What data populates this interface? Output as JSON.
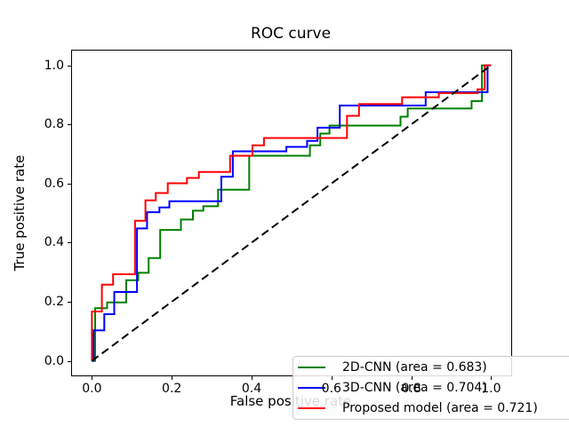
{
  "chart_data": {
    "type": "line",
    "title": "ROC curve",
    "xlabel": "False positive rate",
    "ylabel": "True positive rate",
    "xlim": [
      -0.05,
      1.05
    ],
    "ylim": [
      -0.05,
      1.05
    ],
    "grid": false,
    "legend_position": "lower right",
    "x_ticks": {
      "values": [
        0.0,
        0.2,
        0.4,
        0.6,
        0.8,
        1.0
      ],
      "labels": [
        "0.0",
        "0.2",
        "0.4",
        "0.6",
        "0.8",
        "1.0"
      ]
    },
    "y_ticks": {
      "values": [
        0.0,
        0.2,
        0.4,
        0.6,
        0.8,
        1.0
      ],
      "labels": [
        "0.0",
        "0.2",
        "0.4",
        "0.6",
        "0.8",
        "1.0"
      ]
    },
    "diagonal": {
      "name": "chance-line",
      "color": "#000000",
      "style": "dashed",
      "points": [
        [
          0,
          0
        ],
        [
          1,
          1
        ]
      ]
    },
    "series": [
      {
        "name": "2D-CNN",
        "label": "2D-CNN (area = 0.683)",
        "area": 0.683,
        "color": "#008000",
        "points": [
          [
            0,
            0
          ],
          [
            0.008,
            0
          ],
          [
            0.008,
            0.178
          ],
          [
            0.038,
            0.178
          ],
          [
            0.038,
            0.198
          ],
          [
            0.086,
            0.198
          ],
          [
            0.086,
            0.273
          ],
          [
            0.116,
            0.273
          ],
          [
            0.116,
            0.298
          ],
          [
            0.142,
            0.298
          ],
          [
            0.142,
            0.348
          ],
          [
            0.171,
            0.348
          ],
          [
            0.171,
            0.443
          ],
          [
            0.223,
            0.443
          ],
          [
            0.223,
            0.478
          ],
          [
            0.253,
            0.478
          ],
          [
            0.253,
            0.508
          ],
          [
            0.279,
            0.508
          ],
          [
            0.279,
            0.523
          ],
          [
            0.316,
            0.523
          ],
          [
            0.316,
            0.579
          ],
          [
            0.394,
            0.579
          ],
          [
            0.394,
            0.694
          ],
          [
            0.546,
            0.694
          ],
          [
            0.546,
            0.729
          ],
          [
            0.572,
            0.729
          ],
          [
            0.572,
            0.769
          ],
          [
            0.595,
            0.769
          ],
          [
            0.595,
            0.796
          ],
          [
            0.773,
            0.796
          ],
          [
            0.773,
            0.826
          ],
          [
            0.791,
            0.826
          ],
          [
            0.791,
            0.854
          ],
          [
            0.951,
            0.854
          ],
          [
            0.951,
            0.879
          ],
          [
            0.977,
            0.879
          ],
          [
            0.977,
            1.0
          ],
          [
            1,
            1
          ]
        ]
      },
      {
        "name": "3D-CNN",
        "label": "3D-CNN (area = 0.704)",
        "area": 0.704,
        "color": "#0000ff",
        "points": [
          [
            0,
            0
          ],
          [
            0.004,
            0
          ],
          [
            0.004,
            0.103
          ],
          [
            0.031,
            0.103
          ],
          [
            0.031,
            0.158
          ],
          [
            0.056,
            0.158
          ],
          [
            0.056,
            0.233
          ],
          [
            0.113,
            0.233
          ],
          [
            0.113,
            0.448
          ],
          [
            0.138,
            0.448
          ],
          [
            0.138,
            0.503
          ],
          [
            0.169,
            0.503
          ],
          [
            0.169,
            0.519
          ],
          [
            0.194,
            0.519
          ],
          [
            0.194,
            0.54
          ],
          [
            0.324,
            0.54
          ],
          [
            0.324,
            0.623
          ],
          [
            0.353,
            0.623
          ],
          [
            0.353,
            0.709
          ],
          [
            0.487,
            0.709
          ],
          [
            0.487,
            0.724
          ],
          [
            0.539,
            0.724
          ],
          [
            0.539,
            0.744
          ],
          [
            0.565,
            0.744
          ],
          [
            0.565,
            0.789
          ],
          [
            0.621,
            0.789
          ],
          [
            0.621,
            0.864
          ],
          [
            0.836,
            0.864
          ],
          [
            0.836,
            0.909
          ],
          [
            0.991,
            0.909
          ],
          [
            0.991,
            1.0
          ],
          [
            1,
            1
          ]
        ]
      },
      {
        "name": "Proposed model",
        "label": "Proposed model (area = 0.721)",
        "area": 0.721,
        "color": "#ff0000",
        "points": [
          [
            0,
            0
          ],
          [
            0,
            0.167
          ],
          [
            0.025,
            0.167
          ],
          [
            0.025,
            0.258
          ],
          [
            0.053,
            0.258
          ],
          [
            0.053,
            0.293
          ],
          [
            0.108,
            0.293
          ],
          [
            0.108,
            0.474
          ],
          [
            0.134,
            0.474
          ],
          [
            0.134,
            0.543
          ],
          [
            0.16,
            0.543
          ],
          [
            0.16,
            0.568
          ],
          [
            0.19,
            0.568
          ],
          [
            0.19,
            0.601
          ],
          [
            0.238,
            0.601
          ],
          [
            0.238,
            0.619
          ],
          [
            0.268,
            0.619
          ],
          [
            0.268,
            0.639
          ],
          [
            0.346,
            0.639
          ],
          [
            0.346,
            0.694
          ],
          [
            0.402,
            0.694
          ],
          [
            0.402,
            0.729
          ],
          [
            0.431,
            0.729
          ],
          [
            0.431,
            0.754
          ],
          [
            0.639,
            0.754
          ],
          [
            0.639,
            0.829
          ],
          [
            0.669,
            0.829
          ],
          [
            0.669,
            0.869
          ],
          [
            0.777,
            0.869
          ],
          [
            0.777,
            0.892
          ],
          [
            0.869,
            0.892
          ],
          [
            0.869,
            0.906
          ],
          [
            0.966,
            0.906
          ],
          [
            0.966,
            0.919
          ],
          [
            0.984,
            0.919
          ],
          [
            0.984,
            1.0
          ],
          [
            1,
            1
          ]
        ]
      }
    ]
  }
}
